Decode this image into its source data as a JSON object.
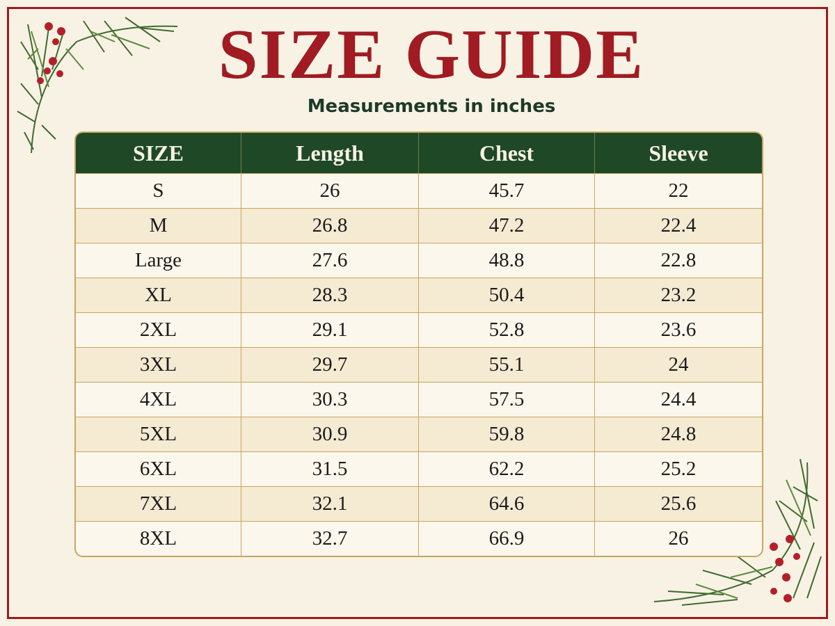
{
  "header": {
    "title": "SIZE GUIDE",
    "subtitle": "Measurements in inches"
  },
  "table": {
    "columns": [
      "SIZE",
      "Length",
      "Chest",
      "Sleeve"
    ],
    "rows": [
      [
        "S",
        "26",
        "45.7",
        "22"
      ],
      [
        "M",
        "26.8",
        "47.2",
        "22.4"
      ],
      [
        "Large",
        "27.6",
        "48.8",
        "22.8"
      ],
      [
        "XL",
        "28.3",
        "50.4",
        "23.2"
      ],
      [
        "2XL",
        "29.1",
        "52.8",
        "23.6"
      ],
      [
        "3XL",
        "29.7",
        "55.1",
        "24"
      ],
      [
        "4XL",
        "30.3",
        "57.5",
        "24.4"
      ],
      [
        "5XL",
        "30.9",
        "59.8",
        "24.8"
      ],
      [
        "6XL",
        "31.5",
        "62.2",
        "25.2"
      ],
      [
        "7XL",
        "32.1",
        "64.6",
        "25.6"
      ],
      [
        "8XL",
        "32.7",
        "66.9",
        "26"
      ]
    ]
  }
}
